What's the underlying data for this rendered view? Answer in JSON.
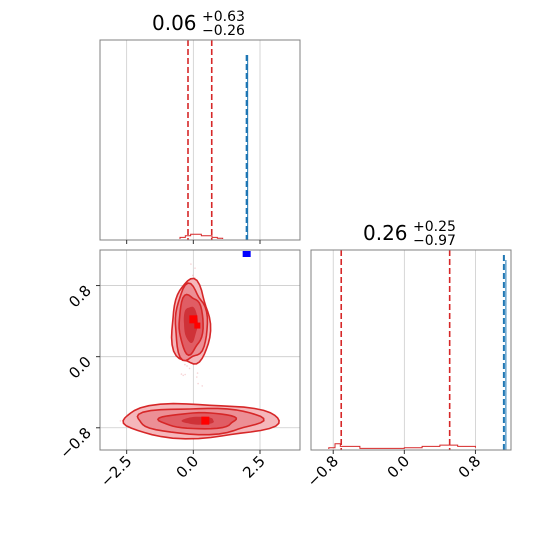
{
  "chart_data": {
    "type": "corner",
    "titles": [
      {
        "value": "0.06",
        "upper": "+0.63",
        "lower": "−0.26"
      },
      {
        "value": "0.26",
        "upper": "+0.25",
        "lower": "−0.97"
      }
    ],
    "p1": {
      "xlim": [
        -3.5,
        4.0
      ],
      "xticks": [
        -2.5,
        0.0,
        2.5
      ],
      "xtick_labels": [
        "−2.5",
        "0.0",
        "2.5"
      ],
      "quantiles": [
        -0.2,
        0.69
      ],
      "truth": 2.0
    },
    "p2": {
      "ylim": [
        -1.05,
        1.2
      ],
      "ylim_hist": [
        -1.05,
        1.2
      ],
      "yticks": [
        -0.8,
        0.0,
        0.8
      ],
      "ytick_labels": [
        "−0.8",
        "0.0",
        "0.8"
      ],
      "xticks": [
        -0.8,
        0.0,
        0.8
      ],
      "xtick_labels": [
        "−0.8",
        "0.0",
        "0.8"
      ],
      "quantiles": [
        -0.71,
        0.51
      ],
      "truth": 1.12
    },
    "hist1": {
      "bins_x": [
        -0.5,
        -0.3,
        -0.1,
        0.1,
        0.3,
        0.5,
        0.7,
        0.9,
        1.1
      ],
      "counts": [
        1,
        2,
        3,
        3,
        2,
        2,
        1,
        0.5,
        0
      ]
    },
    "hist2": {
      "bins_x": [
        -0.85,
        -0.78,
        -0.72,
        -0.5,
        -0.2,
        0.0,
        0.2,
        0.4,
        0.6,
        0.8
      ],
      "counts": [
        1,
        4,
        2,
        0.5,
        0.5,
        1,
        2,
        3,
        2,
        1
      ]
    },
    "modes": [
      {
        "center": [
          -0.1,
          0.37
        ],
        "spread": [
          0.45,
          0.55
        ]
      },
      {
        "center": [
          0.2,
          -0.72
        ],
        "spread": [
          2.8,
          0.12
        ]
      }
    ],
    "truth_point": [
      2.0,
      1.12
    ],
    "colors": {
      "posterior": "#d62728",
      "fill": "#e8838a",
      "truth": "#1f77b4",
      "truth_marker": "#0000ff",
      "grid": "#cccccc"
    }
  }
}
